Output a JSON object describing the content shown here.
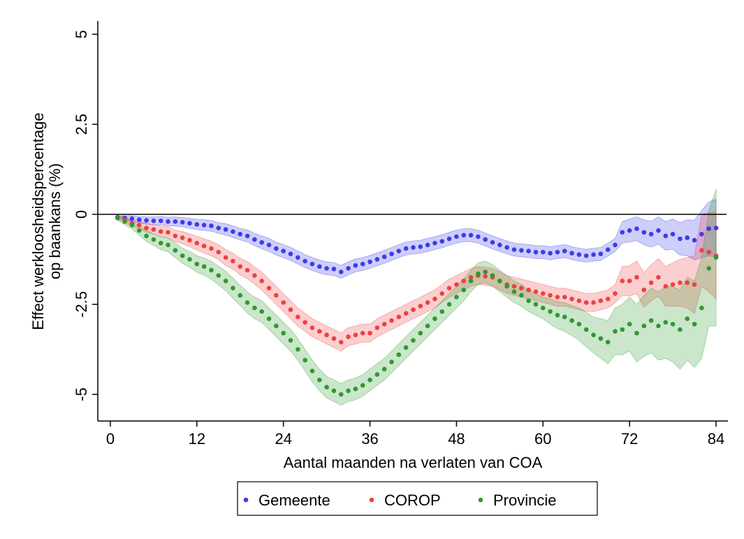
{
  "chart_data": {
    "type": "dot-band",
    "ylabel": [
      "Effect werkloosheidspercentage",
      "op baankans (%)"
    ],
    "xlabel": "Aantal maanden na verlaten van COA",
    "xlim": [
      -1.74,
      85.45
    ],
    "xticks": [
      0,
      12,
      24,
      36,
      48,
      60,
      72,
      84
    ],
    "ylim": [
      -5.74,
      5.37
    ],
    "yticks": [
      5,
      2.5,
      0,
      -2.5,
      -5
    ],
    "hline": 0,
    "legend": "bottom",
    "x": [
      1,
      2,
      3,
      4,
      5,
      6,
      7,
      8,
      9,
      10,
      11,
      12,
      13,
      14,
      15,
      16,
      17,
      18,
      19,
      20,
      21,
      22,
      23,
      24,
      25,
      26,
      27,
      28,
      29,
      30,
      31,
      32,
      33,
      34,
      35,
      36,
      37,
      38,
      39,
      40,
      41,
      42,
      43,
      44,
      45,
      46,
      47,
      48,
      49,
      50,
      51,
      52,
      53,
      54,
      55,
      56,
      57,
      58,
      59,
      60,
      61,
      62,
      63,
      64,
      65,
      66,
      67,
      68,
      69,
      70,
      71,
      72,
      73,
      74,
      75,
      76,
      77,
      78,
      79,
      80,
      81,
      82,
      83,
      84
    ],
    "series": [
      {
        "name": "Gemeente",
        "color": "#3c3cf0",
        "values": [
          -0.08,
          -0.1,
          -0.12,
          -0.15,
          -0.17,
          -0.18,
          -0.18,
          -0.2,
          -0.2,
          -0.22,
          -0.25,
          -0.28,
          -0.3,
          -0.32,
          -0.38,
          -0.42,
          -0.48,
          -0.55,
          -0.6,
          -0.7,
          -0.78,
          -0.85,
          -0.95,
          -1.02,
          -1.1,
          -1.2,
          -1.3,
          -1.38,
          -1.45,
          -1.5,
          -1.52,
          -1.6,
          -1.5,
          -1.42,
          -1.38,
          -1.32,
          -1.25,
          -1.18,
          -1.1,
          -1.02,
          -0.95,
          -0.92,
          -0.9,
          -0.85,
          -0.8,
          -0.75,
          -0.68,
          -0.62,
          -0.58,
          -0.58,
          -0.62,
          -0.7,
          -0.78,
          -0.85,
          -0.92,
          -0.98,
          -1.0,
          -1.02,
          -1.05,
          -1.05,
          -1.08,
          -1.05,
          -1.02,
          -1.08,
          -1.12,
          -1.15,
          -1.12,
          -1.1,
          -0.98,
          -0.85,
          -0.5,
          -0.45,
          -0.4,
          -0.5,
          -0.55,
          -0.45,
          -0.6,
          -0.55,
          -0.68,
          -0.65,
          -0.72,
          -0.55,
          -0.4,
          -0.38
        ],
        "ci": [
          0.04,
          0.06,
          0.08,
          0.09,
          0.1,
          0.11,
          0.12,
          0.12,
          0.13,
          0.13,
          0.14,
          0.14,
          0.15,
          0.15,
          0.15,
          0.16,
          0.16,
          0.16,
          0.17,
          0.17,
          0.18,
          0.18,
          0.18,
          0.18,
          0.18,
          0.18,
          0.18,
          0.18,
          0.18,
          0.18,
          0.18,
          0.18,
          0.18,
          0.18,
          0.18,
          0.18,
          0.18,
          0.18,
          0.18,
          0.18,
          0.18,
          0.18,
          0.18,
          0.18,
          0.18,
          0.18,
          0.18,
          0.18,
          0.18,
          0.18,
          0.18,
          0.18,
          0.18,
          0.18,
          0.18,
          0.18,
          0.18,
          0.18,
          0.18,
          0.18,
          0.18,
          0.18,
          0.18,
          0.18,
          0.18,
          0.18,
          0.18,
          0.18,
          0.18,
          0.18,
          0.3,
          0.32,
          0.33,
          0.35,
          0.36,
          0.38,
          0.4,
          0.42,
          0.45,
          0.5,
          0.55,
          0.65,
          0.75,
          0.8
        ]
      },
      {
        "name": "COROP",
        "color": "#f04040",
        "values": [
          -0.1,
          -0.15,
          -0.25,
          -0.3,
          -0.38,
          -0.42,
          -0.48,
          -0.5,
          -0.6,
          -0.65,
          -0.72,
          -0.8,
          -0.88,
          -0.95,
          -1.05,
          -1.2,
          -1.3,
          -1.45,
          -1.55,
          -1.7,
          -1.85,
          -2.05,
          -2.25,
          -2.45,
          -2.65,
          -2.85,
          -3.0,
          -3.15,
          -3.25,
          -3.35,
          -3.45,
          -3.55,
          -3.4,
          -3.35,
          -3.3,
          -3.3,
          -3.15,
          -3.05,
          -2.95,
          -2.85,
          -2.75,
          -2.65,
          -2.55,
          -2.45,
          -2.35,
          -2.2,
          -2.05,
          -1.95,
          -1.85,
          -1.75,
          -1.7,
          -1.72,
          -1.75,
          -1.85,
          -1.95,
          -2.0,
          -2.05,
          -2.1,
          -2.15,
          -2.2,
          -2.25,
          -2.3,
          -2.3,
          -2.35,
          -2.4,
          -2.45,
          -2.45,
          -2.4,
          -2.35,
          -2.2,
          -1.85,
          -1.85,
          -1.75,
          -2.1,
          -1.9,
          -1.75,
          -2.0,
          -1.95,
          -1.9,
          -1.9,
          -1.95,
          -1.0,
          -1.05,
          -1.15
        ],
        "ci": [
          0.05,
          0.07,
          0.09,
          0.1,
          0.12,
          0.13,
          0.14,
          0.15,
          0.16,
          0.17,
          0.18,
          0.19,
          0.2,
          0.2,
          0.21,
          0.22,
          0.22,
          0.23,
          0.24,
          0.24,
          0.25,
          0.25,
          0.25,
          0.25,
          0.25,
          0.25,
          0.25,
          0.25,
          0.25,
          0.25,
          0.25,
          0.25,
          0.25,
          0.25,
          0.25,
          0.25,
          0.25,
          0.25,
          0.25,
          0.25,
          0.25,
          0.25,
          0.25,
          0.25,
          0.25,
          0.25,
          0.25,
          0.25,
          0.25,
          0.25,
          0.25,
          0.25,
          0.25,
          0.25,
          0.25,
          0.25,
          0.25,
          0.25,
          0.25,
          0.25,
          0.25,
          0.25,
          0.25,
          0.25,
          0.25,
          0.25,
          0.25,
          0.25,
          0.25,
          0.25,
          0.4,
          0.42,
          0.45,
          0.48,
          0.5,
          0.52,
          0.55,
          0.6,
          0.65,
          0.7,
          0.8,
          1.0,
          1.1,
          1.2
        ]
      },
      {
        "name": "Provincie",
        "color": "#2e9a2e",
        "values": [
          -0.1,
          -0.2,
          -0.3,
          -0.45,
          -0.6,
          -0.7,
          -0.8,
          -0.85,
          -1.0,
          -1.15,
          -1.25,
          -1.38,
          -1.45,
          -1.55,
          -1.7,
          -1.85,
          -2.05,
          -2.25,
          -2.45,
          -2.6,
          -2.7,
          -2.9,
          -3.1,
          -3.3,
          -3.5,
          -3.75,
          -4.05,
          -4.35,
          -4.6,
          -4.8,
          -4.9,
          -5.0,
          -4.9,
          -4.85,
          -4.75,
          -4.6,
          -4.45,
          -4.3,
          -4.1,
          -3.9,
          -3.7,
          -3.5,
          -3.3,
          -3.1,
          -2.9,
          -2.7,
          -2.5,
          -2.3,
          -2.1,
          -1.85,
          -1.65,
          -1.6,
          -1.7,
          -1.85,
          -2.0,
          -2.15,
          -2.25,
          -2.4,
          -2.5,
          -2.6,
          -2.7,
          -2.8,
          -2.85,
          -2.95,
          -3.05,
          -3.2,
          -3.35,
          -3.45,
          -3.55,
          -3.25,
          -3.2,
          -3.05,
          -3.3,
          -3.1,
          -2.95,
          -3.1,
          -3.0,
          -3.05,
          -3.2,
          -2.9,
          -3.05,
          -2.6,
          -1.5,
          -1.2
        ],
        "ci": [
          0.06,
          0.09,
          0.11,
          0.13,
          0.15,
          0.16,
          0.18,
          0.19,
          0.2,
          0.21,
          0.22,
          0.23,
          0.24,
          0.25,
          0.26,
          0.27,
          0.28,
          0.28,
          0.29,
          0.3,
          0.3,
          0.3,
          0.3,
          0.3,
          0.3,
          0.3,
          0.3,
          0.3,
          0.3,
          0.3,
          0.3,
          0.3,
          0.3,
          0.3,
          0.3,
          0.3,
          0.3,
          0.3,
          0.3,
          0.3,
          0.3,
          0.3,
          0.3,
          0.3,
          0.3,
          0.3,
          0.3,
          0.3,
          0.3,
          0.3,
          0.3,
          0.3,
          0.3,
          0.3,
          0.3,
          0.3,
          0.3,
          0.3,
          0.3,
          0.3,
          0.35,
          0.38,
          0.4,
          0.42,
          0.45,
          0.48,
          0.5,
          0.55,
          0.6,
          0.65,
          0.7,
          0.75,
          0.8,
          0.85,
          0.9,
          0.95,
          1.0,
          1.05,
          1.1,
          1.15,
          1.2,
          1.4,
          1.6,
          1.9
        ]
      }
    ]
  }
}
